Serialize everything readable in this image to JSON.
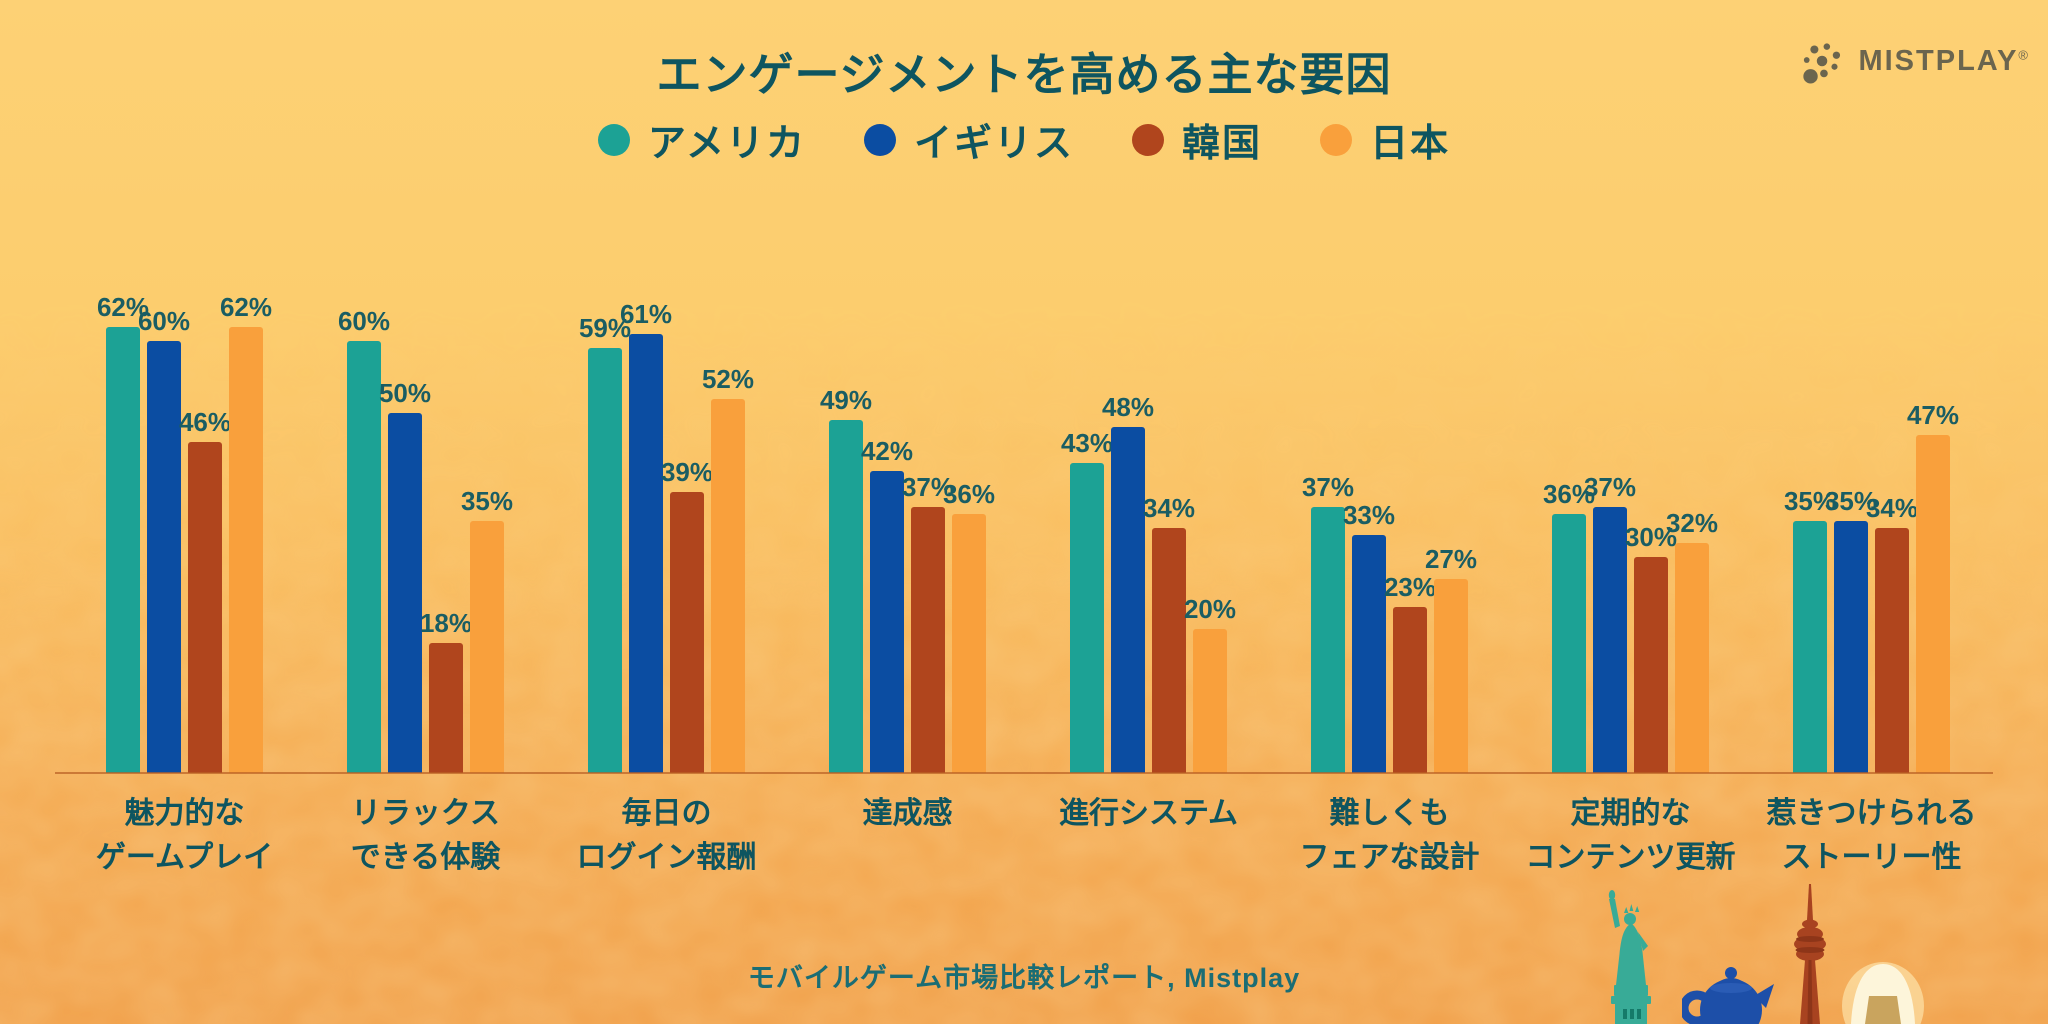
{
  "header": {
    "title": "エンゲージメントを高める主な要因"
  },
  "logo": {
    "text": "MISTPLAY",
    "registered": "®",
    "color": "#6b654e"
  },
  "footer": {
    "source": "モバイルゲーム市場比較レポート, Mistplay"
  },
  "colors": {
    "background_top": "#fdd175",
    "background_bottom": "#f1a04a",
    "text": "#0e5560",
    "value_label": "#1a5d63",
    "axis_line": "#b95f24"
  },
  "decorations": [
    "statue-of-liberty",
    "teapot",
    "seoul-tower",
    "onigiri"
  ],
  "chart_data": {
    "type": "bar",
    "title": "エンゲージメントを高める主な要因",
    "xlabel": "",
    "ylabel": "",
    "ylim": [
      0,
      65
    ],
    "grid": false,
    "legend_position": "top",
    "value_suffix": "%",
    "categories": [
      [
        "魅力的な",
        "ゲームプレイ"
      ],
      [
        "リラックス",
        "できる体験"
      ],
      [
        "毎日の",
        "ログイン報酬"
      ],
      [
        "達成感"
      ],
      [
        "進行システム"
      ],
      [
        "難しくも",
        "フェアな設計"
      ],
      [
        "定期的な",
        "コンテンツ更新"
      ],
      [
        "惹きつけられる",
        "ストーリー性"
      ]
    ],
    "series": [
      {
        "name": "アメリカ",
        "color": "#1ca295",
        "values": [
          62,
          60,
          59,
          49,
          43,
          37,
          36,
          35
        ]
      },
      {
        "name": "イギリス",
        "color": "#0b4da2",
        "values": [
          60,
          50,
          61,
          42,
          48,
          33,
          37,
          35
        ]
      },
      {
        "name": "韓国",
        "color": "#b0451d",
        "values": [
          46,
          18,
          39,
          37,
          34,
          23,
          30,
          34
        ]
      },
      {
        "name": "日本",
        "color": "#f9a03c",
        "values": [
          62,
          35,
          52,
          36,
          20,
          27,
          32,
          47
        ]
      }
    ]
  }
}
